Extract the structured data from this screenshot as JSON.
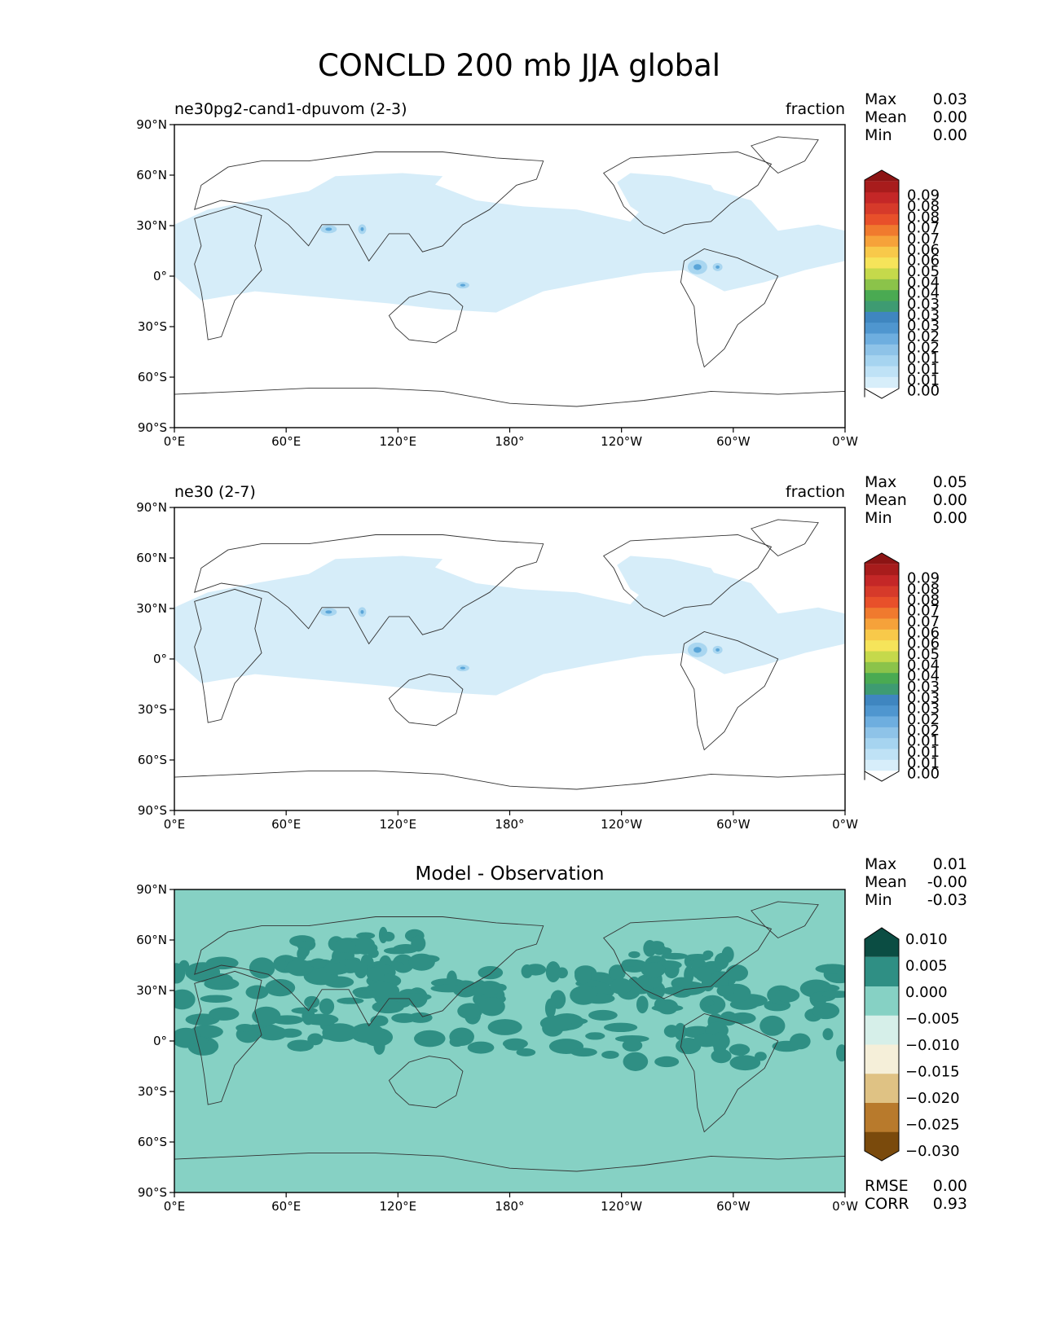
{
  "figure": {
    "title": "CONCLD 200 mb JJA global"
  },
  "axes": {
    "lat_ticks": [
      "90°N",
      "60°N",
      "30°N",
      "0°",
      "30°S",
      "60°S",
      "90°S"
    ],
    "lon_ticks": [
      "0°E",
      "60°E",
      "120°E",
      "180°",
      "120°W",
      "60°W",
      "0°W"
    ]
  },
  "panels": [
    {
      "left_title": "ne30pg2-cand1-dpuvom (2-3)",
      "center_title": "",
      "right_title": "fraction",
      "stats": [
        {
          "label": "Max",
          "value": "0.03"
        },
        {
          "label": "Mean",
          "value": "0.00"
        },
        {
          "label": "Min",
          "value": "0.00"
        }
      ]
    },
    {
      "left_title": "ne30 (2-7)",
      "center_title": "",
      "right_title": "fraction",
      "stats": [
        {
          "label": "Max",
          "value": "0.05"
        },
        {
          "label": "Mean",
          "value": "0.00"
        },
        {
          "label": "Min",
          "value": "0.00"
        }
      ]
    },
    {
      "left_title": "",
      "center_title": "Model - Observation",
      "right_title": "",
      "stats": [
        {
          "label": "Max",
          "value": "0.01"
        },
        {
          "label": "Mean",
          "value": "-0.00"
        },
        {
          "label": "Min",
          "value": "-0.03"
        }
      ],
      "extra_stats": [
        {
          "label": "RMSE",
          "value": "0.00"
        },
        {
          "label": "CORR",
          "value": "0.93"
        }
      ]
    }
  ],
  "colorbars": {
    "sequential": {
      "colors": [
        "#ffffff",
        "#d7eefa",
        "#bfe2f6",
        "#a6d4f0",
        "#8ec3e8",
        "#6eaedf",
        "#4f96cf",
        "#3f86c0",
        "#3e9b72",
        "#4aaa52",
        "#8bc34a",
        "#c5d94b",
        "#f6e45a",
        "#f8c94a",
        "#f6a23a",
        "#f07a2e",
        "#e8502a",
        "#d63a2a",
        "#c42727",
        "#a81c1c",
        "#8c1414"
      ],
      "labels": [
        "0.00",
        "0.01",
        "0.01",
        "0.01",
        "0.02",
        "0.02",
        "0.03",
        "0.03",
        "0.03",
        "0.04",
        "0.04",
        "0.05",
        "0.06",
        "0.06",
        "0.07",
        "0.07",
        "0.08",
        "0.08",
        "0.09"
      ]
    },
    "diverging": {
      "colors": [
        "#7a4a0c",
        "#b87a2c",
        "#dfc284",
        "#f5efd9",
        "#d6efe9",
        "#86d1c4",
        "#2f8f84",
        "#0b4d43"
      ],
      "labels": [
        "0.010",
        "0.005",
        "0.000",
        "−0.005",
        "−0.010",
        "−0.015",
        "−0.020",
        "−0.025",
        "−0.030"
      ]
    }
  },
  "colors": {
    "field_light": "#d6edf9",
    "field_mid": "#a9d6f0",
    "field_dark": "#5aa5d8",
    "diff_background": "#86d1c4",
    "diff_positive": "#2f8f84",
    "coast": "#333333"
  }
}
